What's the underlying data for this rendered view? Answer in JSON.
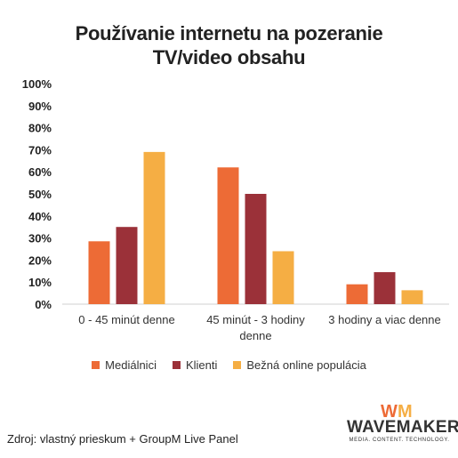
{
  "chart_data": {
    "type": "bar",
    "title_lines": [
      "Používanie internetu na pozeranie",
      "TV/video obsahu"
    ],
    "categories": [
      [
        "0 - 45 minút denne"
      ],
      [
        "45 minút - 3 hodiny",
        "denne"
      ],
      [
        "3 hodiny a viac denne"
      ]
    ],
    "series": [
      {
        "name": "Mediálnici",
        "color": "#ed6b36",
        "values": [
          28.5,
          62,
          9
        ]
      },
      {
        "name": "Klienti",
        "color": "#9b3139",
        "values": [
          35,
          50,
          14.5
        ]
      },
      {
        "name": "Bežná online populácia",
        "color": "#f5ae44",
        "values": [
          69,
          24,
          6.3
        ]
      }
    ],
    "y_ticks": [
      "0%",
      "10%",
      "20%",
      "30%",
      "40%",
      "50%",
      "60%",
      "70%",
      "80%",
      "90%",
      "100%"
    ],
    "ylim": [
      0,
      100
    ],
    "legend_position": "bottom",
    "grid": false
  },
  "source_text": "Zdroj: vlastný prieskum + GroupM Live Panel",
  "logo": {
    "mark_text": "WM",
    "wordmark": "WAVEMAKER",
    "tagline": "MEDIA. CONTENT. TECHNOLOGY.",
    "mark_colors": [
      "#ed6b36",
      "#f5ae44"
    ]
  }
}
